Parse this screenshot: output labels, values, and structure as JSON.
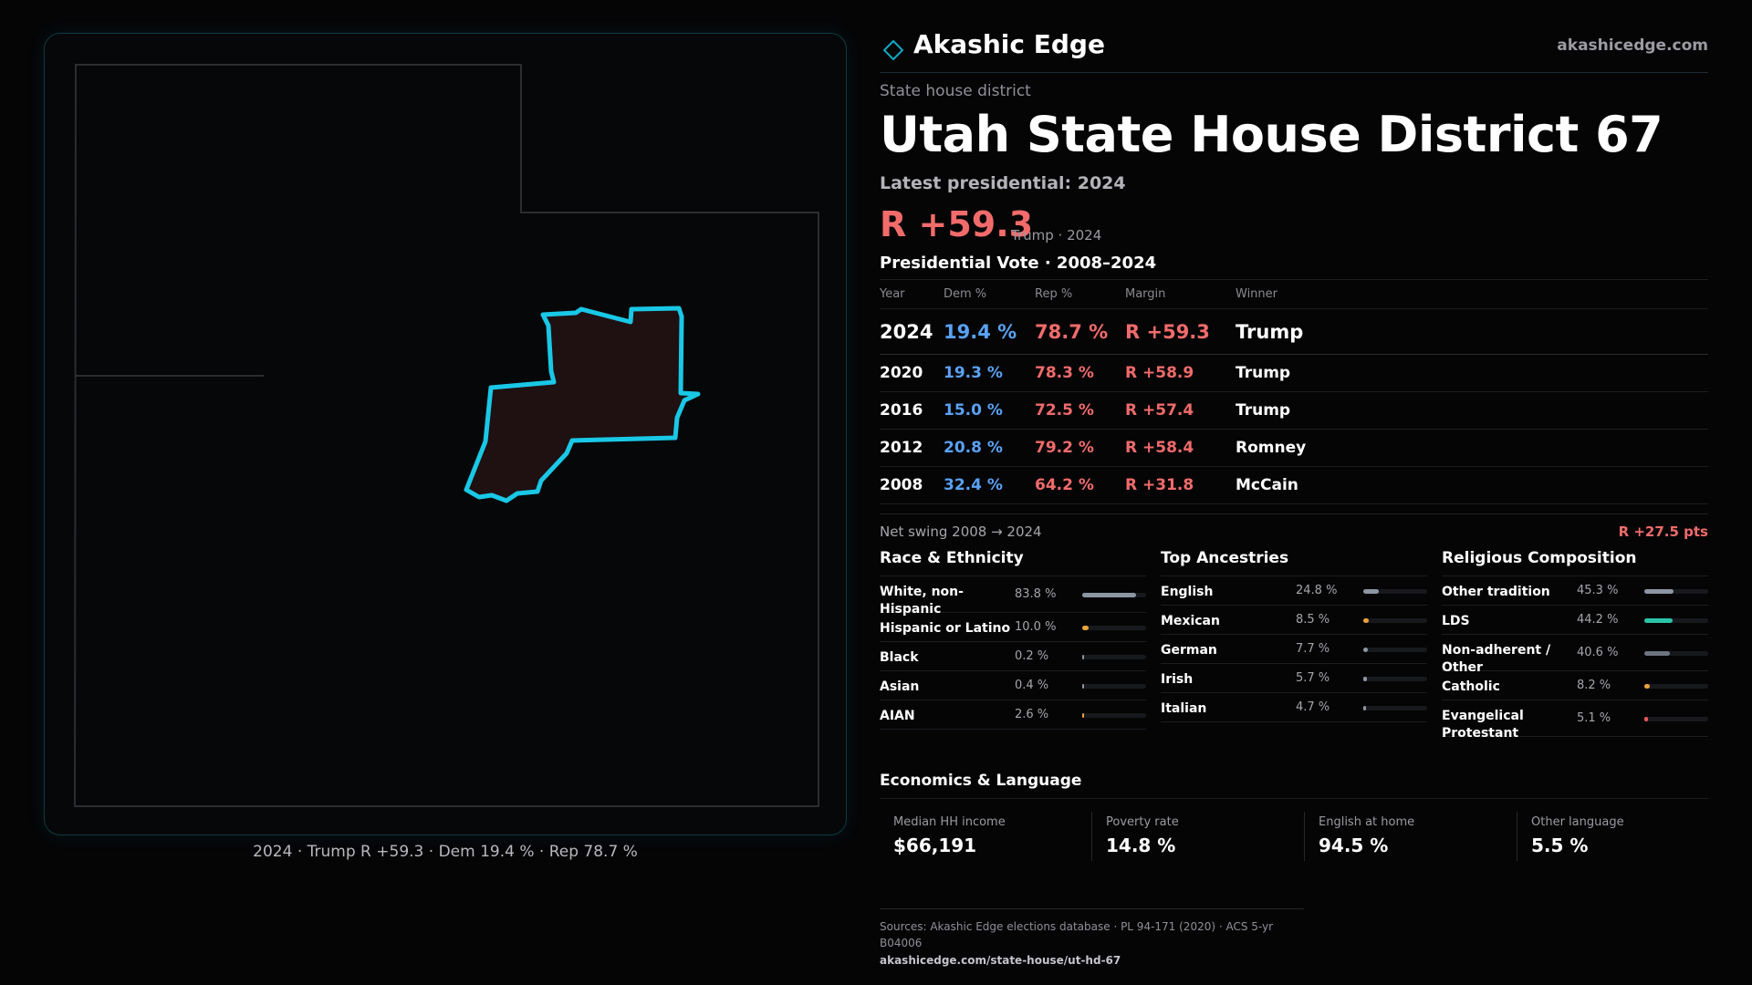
{
  "brand": {
    "name": "Akashic Edge",
    "url": "akashicedge.com",
    "accent": "#14a8c4"
  },
  "header": {
    "kicker": "State house district",
    "title": "Utah State House District 67",
    "latest_label": "Latest presidential: 2024",
    "margin": "R +59.3",
    "margin_note": "Trump · 2024"
  },
  "map": {
    "caption": "2024 · Trump R +59.3 · Dem 19.4 % · Rep 78.7 %",
    "highlight_color": "#19c8e6",
    "fill_color": "#1f1012"
  },
  "vote_table": {
    "title": "Presidential Vote · 2008–2024",
    "columns": [
      "Year",
      "Dem %",
      "Rep %",
      "Margin",
      "Winner"
    ],
    "rows": [
      {
        "year": "2024",
        "dem": "19.4 %",
        "rep": "78.7 %",
        "margin": "R +59.3",
        "winner": "Trump"
      },
      {
        "year": "2020",
        "dem": "19.3 %",
        "rep": "78.3 %",
        "margin": "R +58.9",
        "winner": "Trump"
      },
      {
        "year": "2016",
        "dem": "15.0 %",
        "rep": "72.5 %",
        "margin": "R +57.4",
        "winner": "Trump"
      },
      {
        "year": "2012",
        "dem": "20.8 %",
        "rep": "79.2 %",
        "margin": "R +58.4",
        "winner": "Romney"
      },
      {
        "year": "2008",
        "dem": "32.4 %",
        "rep": "64.2 %",
        "margin": "R +31.8",
        "winner": "McCain"
      }
    ],
    "swing_label": "Net swing 2008 → 2024",
    "swing_value": "R +27.5 pts"
  },
  "race": {
    "title": "Race & Ethnicity",
    "rows": [
      {
        "label": "White, non-Hispanic",
        "value": "83.8 %",
        "pct": 83.8,
        "color": "#8d96a3"
      },
      {
        "label": "Hispanic or Latino",
        "value": "10.0 %",
        "pct": 10.0,
        "color": "#e8a33a"
      },
      {
        "label": "Black",
        "value": "0.2 %",
        "pct": 0.2,
        "color": "#8d96a3"
      },
      {
        "label": "Asian",
        "value": "0.4 %",
        "pct": 0.4,
        "color": "#8d96a3"
      },
      {
        "label": "AIAN",
        "value": "2.6 %",
        "pct": 2.6,
        "color": "#e8a33a"
      }
    ]
  },
  "ancestry": {
    "title": "Top Ancestries",
    "rows": [
      {
        "label": "English",
        "value": "24.8 %",
        "pct": 24.8,
        "color": "#8d96a3"
      },
      {
        "label": "Mexican",
        "value": "8.5 %",
        "pct": 8.5,
        "color": "#e8a33a"
      },
      {
        "label": "German",
        "value": "7.7 %",
        "pct": 7.7,
        "color": "#8d96a3"
      },
      {
        "label": "Irish",
        "value": "5.7 %",
        "pct": 5.7,
        "color": "#8d96a3"
      },
      {
        "label": "Italian",
        "value": "4.7 %",
        "pct": 4.7,
        "color": "#8d96a3"
      }
    ]
  },
  "religion": {
    "title": "Religious Composition",
    "rows": [
      {
        "label": "Other tradition",
        "value": "45.3 %",
        "pct": 45.3,
        "color": "#8d96a3"
      },
      {
        "label": "LDS",
        "value": "44.2 %",
        "pct": 44.2,
        "color": "#2cc4a8"
      },
      {
        "label": "Non-adherent / Other",
        "value": "40.6 %",
        "pct": 40.6,
        "color": "#6d7480"
      },
      {
        "label": "Catholic",
        "value": "8.2 %",
        "pct": 8.2,
        "color": "#e8a33a"
      },
      {
        "label": "Evangelical Protestant",
        "value": "5.1 %",
        "pct": 5.1,
        "color": "#e85a5a"
      }
    ]
  },
  "economics": {
    "title": "Economics & Language",
    "items": [
      {
        "label": "Median HH income",
        "value": "$66,191"
      },
      {
        "label": "Poverty rate",
        "value": "14.8 %"
      },
      {
        "label": "English at home",
        "value": "94.5 %"
      },
      {
        "label": "Other language",
        "value": "5.5 %"
      }
    ]
  },
  "sources": {
    "text": "Sources: Akashic Edge elections database · PL 94-171 (2020) · ACS 5-yr B04006",
    "url": "akashicedge.com/state-house/ut-hd-67"
  }
}
